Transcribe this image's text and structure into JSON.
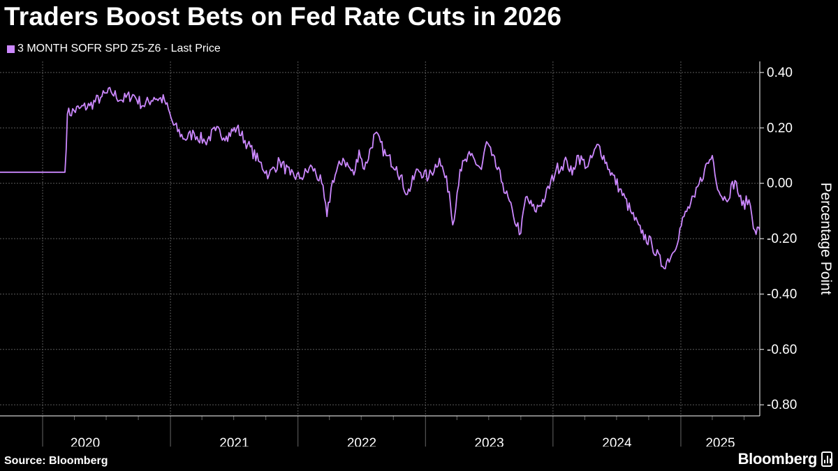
{
  "header": {
    "title": "Traders Boost Bets on Fed Rate Cuts in 2026"
  },
  "footer": {
    "source": "Source: Bloomberg",
    "brand": "Bloomberg",
    "brand_icon": "bar-chart-icon"
  },
  "chart_data": {
    "type": "line",
    "title": "Traders Boost Bets on Fed Rate Cuts in 2026",
    "xlabel": "",
    "ylabel": "Percentage Point",
    "y_axis_position": "right",
    "grid": true,
    "legend_position": "top-left",
    "xlim": [
      "2019-09-01",
      "2025-08-15"
    ],
    "ylim": [
      -0.84,
      0.44
    ],
    "y_ticks": [
      0.4,
      0.2,
      0.0,
      -0.2,
      -0.4,
      -0.6,
      -0.8
    ],
    "y_tick_labels": [
      "0.40",
      "0.20",
      "0.00",
      "-0.20",
      "-0.40",
      "-0.60",
      "-0.80"
    ],
    "x_ticks": [
      {
        "label": "2020",
        "date": "2020-01-01"
      },
      {
        "label": "2021",
        "date": "2021-01-01"
      },
      {
        "label": "2022",
        "date": "2022-01-01"
      },
      {
        "label": "2023",
        "date": "2023-01-01"
      },
      {
        "label": "2024",
        "date": "2024-01-01"
      },
      {
        "label": "2025",
        "date": "2025-01-01"
      }
    ],
    "series": [
      {
        "name": "3 MONTH SOFR SPD Z5-Z6 - Last Price",
        "color": "#cc88ff",
        "points": [
          [
            "2019-09-01",
            0.04
          ],
          [
            "2019-12-01",
            0.04
          ],
          [
            "2020-03-05",
            0.04
          ],
          [
            "2020-03-12",
            0.25
          ],
          [
            "2020-04-15",
            0.27
          ],
          [
            "2020-05-15",
            0.28
          ],
          [
            "2020-06-15",
            0.31
          ],
          [
            "2020-07-15",
            0.33
          ],
          [
            "2020-08-15",
            0.3
          ],
          [
            "2020-09-15",
            0.32
          ],
          [
            "2020-10-15",
            0.28
          ],
          [
            "2020-11-15",
            0.31
          ],
          [
            "2020-12-15",
            0.3
          ],
          [
            "2021-01-10",
            0.21
          ],
          [
            "2021-02-10",
            0.16
          ],
          [
            "2021-03-10",
            0.18
          ],
          [
            "2021-04-10",
            0.15
          ],
          [
            "2021-05-10",
            0.19
          ],
          [
            "2021-06-10",
            0.17
          ],
          [
            "2021-07-10",
            0.2
          ],
          [
            "2021-08-10",
            0.14
          ],
          [
            "2021-09-10",
            0.08
          ],
          [
            "2021-10-10",
            0.03
          ],
          [
            "2021-11-10",
            0.08
          ],
          [
            "2021-12-10",
            0.03
          ],
          [
            "2022-01-10",
            0.02
          ],
          [
            "2022-02-10",
            0.06
          ],
          [
            "2022-03-10",
            0.0
          ],
          [
            "2022-03-25",
            -0.12
          ],
          [
            "2022-04-10",
            0.01
          ],
          [
            "2022-05-10",
            0.09
          ],
          [
            "2022-06-10",
            0.03
          ],
          [
            "2022-06-25",
            0.12
          ],
          [
            "2022-07-10",
            0.05
          ],
          [
            "2022-08-10",
            0.18
          ],
          [
            "2022-09-10",
            0.1
          ],
          [
            "2022-10-10",
            0.06
          ],
          [
            "2022-11-10",
            -0.04
          ],
          [
            "2022-12-10",
            0.05
          ],
          [
            "2023-01-10",
            0.02
          ],
          [
            "2023-02-10",
            0.09
          ],
          [
            "2023-03-10",
            -0.03
          ],
          [
            "2023-03-20",
            -0.15
          ],
          [
            "2023-04-10",
            0.05
          ],
          [
            "2023-05-10",
            0.1
          ],
          [
            "2023-06-10",
            0.05
          ],
          [
            "2023-06-25",
            0.15
          ],
          [
            "2023-07-10",
            0.1
          ],
          [
            "2023-08-10",
            0.0
          ],
          [
            "2023-09-10",
            -0.12
          ],
          [
            "2023-10-01",
            -0.18
          ],
          [
            "2023-10-15",
            -0.05
          ],
          [
            "2023-11-10",
            -0.1
          ],
          [
            "2023-12-10",
            -0.05
          ],
          [
            "2024-01-10",
            0.05
          ],
          [
            "2024-02-10",
            0.08
          ],
          [
            "2024-02-25",
            0.03
          ],
          [
            "2024-03-10",
            0.1
          ],
          [
            "2024-04-10",
            0.06
          ],
          [
            "2024-05-10",
            0.14
          ],
          [
            "2024-06-10",
            0.05
          ],
          [
            "2024-07-10",
            -0.02
          ],
          [
            "2024-08-10",
            -0.1
          ],
          [
            "2024-09-10",
            -0.18
          ],
          [
            "2024-10-10",
            -0.22
          ],
          [
            "2024-11-10",
            -0.3
          ],
          [
            "2024-12-10",
            -0.25
          ],
          [
            "2025-01-10",
            -0.12
          ],
          [
            "2025-02-10",
            -0.05
          ],
          [
            "2025-03-10",
            0.05
          ],
          [
            "2025-04-01",
            0.1
          ],
          [
            "2025-04-20",
            -0.03
          ],
          [
            "2025-05-10",
            -0.06
          ],
          [
            "2025-06-05",
            0.01
          ],
          [
            "2025-06-25",
            -0.08
          ],
          [
            "2025-07-15",
            -0.06
          ],
          [
            "2025-08-01",
            -0.17
          ],
          [
            "2025-08-15",
            -0.17
          ]
        ]
      }
    ]
  }
}
